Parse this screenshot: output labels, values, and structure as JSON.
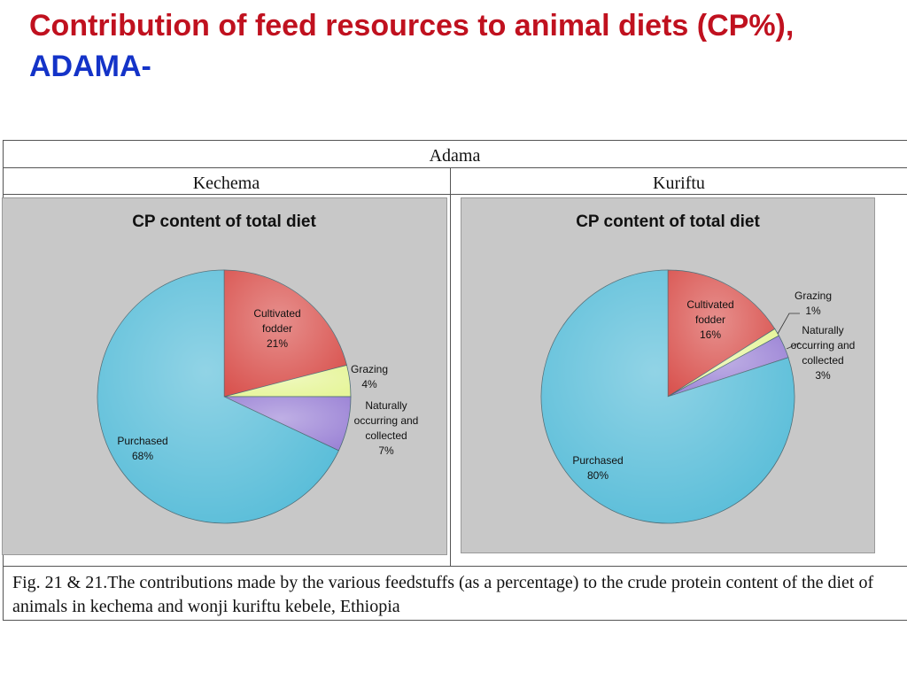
{
  "title": {
    "line1": "Contribution of feed resources to animal diets (CP%),",
    "line2": "ADAMA-"
  },
  "table": {
    "header": "Adama",
    "col1": "Kechema",
    "col2": "Kuriftu",
    "caption": "Fig. 21 & 21.The contributions made by the various feedstuffs (as a percentage) to the crude protein content of the diet of animals in kechema and wonji kuriftu  kebele, Ethiopia"
  },
  "colors": {
    "cultivated": "#d9534f",
    "grazing": "#e6f59a",
    "naturally": "#9c84d6",
    "purchased": "#56bcd8",
    "panel_bg": "#c8c8c8",
    "title_red": "#c0111f",
    "title_blue": "#1433c8"
  },
  "chart_data": [
    {
      "type": "pie",
      "title": "CP content of total diet",
      "slices": [
        {
          "label_lines": [
            "Cultivated",
            "fodder",
            "21%"
          ],
          "value": 21,
          "color_key": "cultivated"
        },
        {
          "label_lines": [
            "Grazing",
            "4%"
          ],
          "value": 4,
          "color_key": "grazing"
        },
        {
          "label_lines": [
            "Naturally",
            "occurring and",
            "collected",
            "7%"
          ],
          "value": 7,
          "color_key": "naturally"
        },
        {
          "label_lines": [
            "Purchased",
            "68%"
          ],
          "value": 68,
          "color_key": "purchased"
        }
      ]
    },
    {
      "type": "pie",
      "title": "CP content of total diet",
      "slices": [
        {
          "label_lines": [
            "Cultivated",
            "fodder",
            "16%"
          ],
          "value": 16,
          "color_key": "cultivated"
        },
        {
          "label_lines": [
            "Grazing",
            "1%"
          ],
          "value": 1,
          "color_key": "grazing"
        },
        {
          "label_lines": [
            "Naturally",
            "occurring and",
            "collected",
            "3%"
          ],
          "value": 3,
          "color_key": "naturally"
        },
        {
          "label_lines": [
            "Purchased",
            "80%"
          ],
          "value": 80,
          "color_key": "purchased"
        }
      ]
    }
  ]
}
